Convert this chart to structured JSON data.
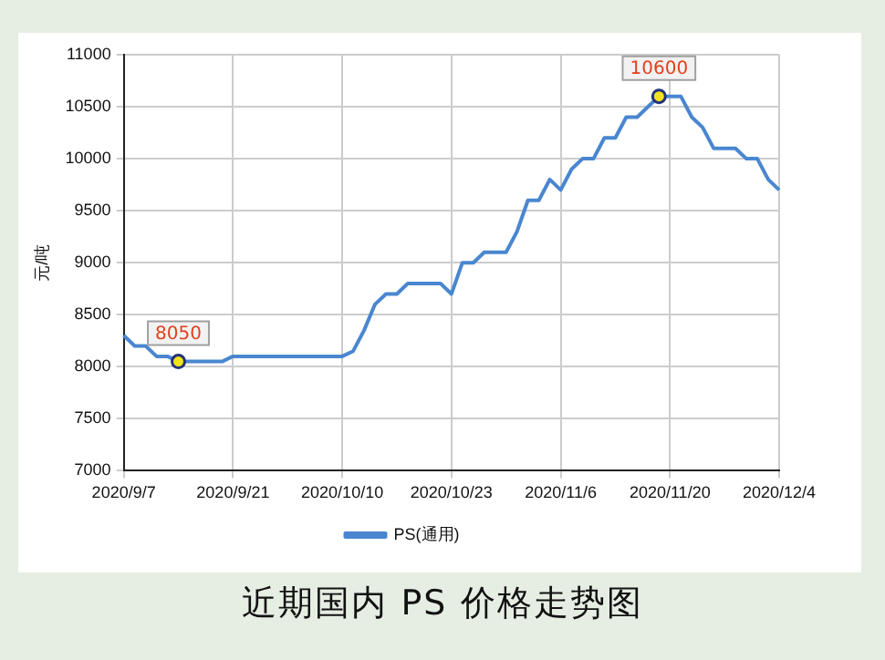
{
  "chart_data": {
    "type": "line",
    "title": "近期国内 PS 价格走势图",
    "ylabel": "元/吨",
    "categories": [
      "2020/9/7",
      null,
      null,
      null,
      null,
      null,
      null,
      null,
      null,
      null,
      "2020/9/21",
      null,
      null,
      null,
      null,
      null,
      null,
      null,
      null,
      null,
      "2020/10/10",
      null,
      null,
      null,
      null,
      null,
      null,
      null,
      null,
      null,
      "2020/10/23",
      null,
      null,
      null,
      null,
      null,
      null,
      null,
      null,
      null,
      "2020/11/6",
      null,
      null,
      null,
      null,
      null,
      null,
      null,
      null,
      null,
      "2020/11/20",
      null,
      null,
      null,
      null,
      null,
      null,
      null,
      null,
      null,
      "2020/12/4"
    ],
    "series": [
      {
        "name": "PS(通用)",
        "color": "#4a86d0",
        "values": [
          8300,
          8200,
          8200,
          8100,
          8100,
          8050,
          8050,
          8050,
          8050,
          8050,
          8100,
          8100,
          8100,
          8100,
          8100,
          8100,
          8100,
          8100,
          8100,
          8100,
          8100,
          8150,
          8350,
          8600,
          8700,
          8700,
          8800,
          8800,
          8800,
          8800,
          8700,
          9000,
          9000,
          9100,
          9100,
          9100,
          9300,
          9600,
          9600,
          9800,
          9700,
          9900,
          10000,
          10000,
          10200,
          10200,
          10400,
          10400,
          10500,
          10600,
          10600,
          10600,
          10400,
          10300,
          10100,
          10100,
          10100,
          10000,
          10000,
          9800,
          9700
        ]
      }
    ],
    "ylim": [
      7000,
      11000
    ],
    "yticks": [
      7000,
      7500,
      8000,
      8500,
      9000,
      9500,
      10000,
      10500,
      11000
    ],
    "grid": true,
    "legend": "bottom",
    "marker": "none",
    "line_style": "solid",
    "annotations": [
      {
        "text": "8050",
        "y": 8050
      },
      {
        "text": "10600",
        "y": 10600
      }
    ]
  }
}
